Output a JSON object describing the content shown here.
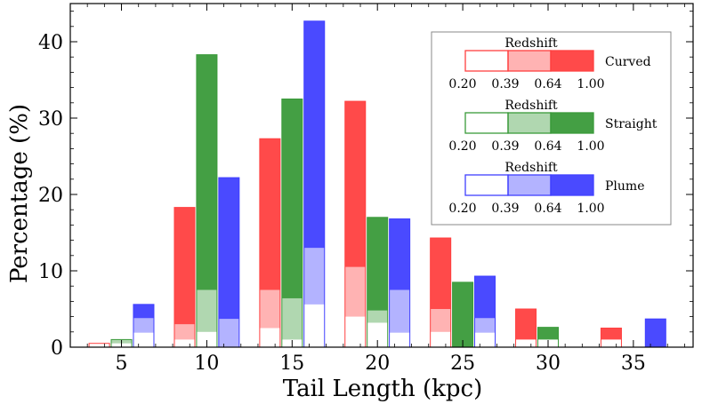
{
  "chart_data": {
    "type": "bar",
    "subtype": "stacked-grouped",
    "xlabel": "Tail Length (kpc)",
    "ylabel": "Percentage (%)",
    "xlim": [
      2,
      38.5
    ],
    "ylim": [
      0,
      45
    ],
    "xticks": [
      5,
      10,
      15,
      20,
      25,
      30,
      35
    ],
    "yticks": [
      0,
      10,
      20,
      30,
      40
    ],
    "bar_width": 1.2,
    "series": [
      {
        "name": "Curved",
        "color": "#ff4040",
        "offset": -1.3,
        "bars": [
          {
            "x": 5,
            "segments": [
              0.5,
              0,
              0,
              0
            ]
          },
          {
            "x": 10,
            "segments": [
              1,
              2,
              0,
              15.3
            ]
          },
          {
            "x": 15,
            "segments": [
              2.5,
              5,
              0,
              19.8
            ]
          },
          {
            "x": 20,
            "segments": [
              4,
              6.5,
              0,
              21.7
            ]
          },
          {
            "x": 25,
            "segments": [
              2,
              3,
              0,
              9.3
            ]
          },
          {
            "x": 30,
            "segments": [
              1,
              0,
              0,
              4
            ]
          },
          {
            "x": 35,
            "segments": [
              1,
              0,
              0,
              1.5
            ]
          }
        ]
      },
      {
        "name": "Straight",
        "color": "#3a9a3a",
        "offset": 0,
        "bars": [
          {
            "x": 5,
            "segments": [
              0.5,
              0.5,
              0,
              0
            ]
          },
          {
            "x": 10,
            "segments": [
              2,
              5.5,
              0,
              30.8
            ]
          },
          {
            "x": 15,
            "segments": [
              1,
              5.4,
              0,
              26.1
            ]
          },
          {
            "x": 20,
            "segments": [
              3.2,
              1.6,
              0,
              12.2
            ]
          },
          {
            "x": 25,
            "segments": [
              0,
              0,
              0,
              8.5
            ]
          },
          {
            "x": 30,
            "segments": [
              1,
              0,
              0,
              1.6
            ]
          },
          {
            "x": 35,
            "segments": [
              0,
              0,
              0,
              0
            ]
          }
        ]
      },
      {
        "name": "Plume",
        "color": "#4040ff",
        "offset": 1.3,
        "bars": [
          {
            "x": 5,
            "segments": [
              1.9,
              1.9,
              0,
              1.8
            ]
          },
          {
            "x": 10,
            "segments": [
              0,
              3.7,
              0,
              18.5
            ]
          },
          {
            "x": 15,
            "segments": [
              5.6,
              7.4,
              0,
              29.7
            ]
          },
          {
            "x": 20,
            "segments": [
              1.9,
              5.6,
              0,
              9.3
            ]
          },
          {
            "x": 25,
            "segments": [
              1.9,
              1.9,
              0,
              5.5
            ]
          },
          {
            "x": 30,
            "segments": [
              0,
              0,
              0,
              0
            ]
          },
          {
            "x": 35,
            "segments": [
              0,
              0,
              0,
              3.7
            ]
          }
        ]
      }
    ],
    "legend": {
      "placement": "top-right",
      "title": "Redshift",
      "bin_edges": [
        "0.20",
        "0.39",
        "0.64",
        "1.00"
      ],
      "bins": [
        "0.20-0.39",
        "0.39-0.64",
        "0.64-1.00"
      ],
      "entries": [
        "Curved",
        "Straight",
        "Plume"
      ]
    }
  }
}
